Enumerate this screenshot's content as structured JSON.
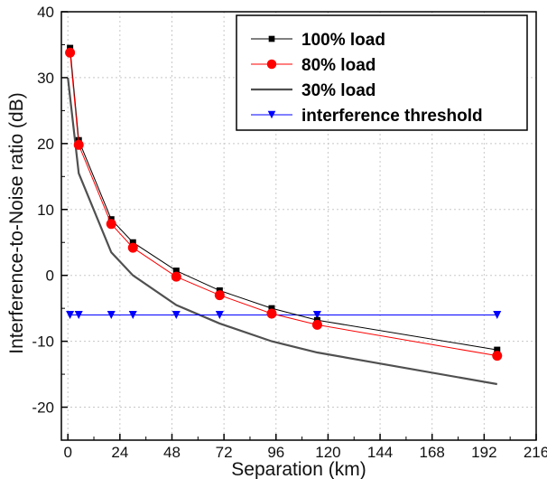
{
  "chart_data": {
    "type": "line",
    "title": "",
    "xlabel": "Separation (km)",
    "ylabel": "Interference-to-Noise ratio (dB)",
    "xlim": [
      -3,
      216
    ],
    "ylim": [
      -25,
      40
    ],
    "xticks": [
      0,
      24,
      48,
      72,
      96,
      120,
      144,
      168,
      192,
      216
    ],
    "yticks": [
      -20,
      -10,
      0,
      10,
      20,
      30,
      40
    ],
    "grid": true,
    "legend_position": "top-right",
    "series": [
      {
        "name": "100% load",
        "color": "#000000",
        "marker": "square",
        "x": [
          1,
          5,
          20,
          30,
          50,
          70,
          94,
          115,
          198
        ],
        "y": [
          34.5,
          20.5,
          8.5,
          5.0,
          0.7,
          -2.3,
          -5.0,
          -6.8,
          -11.3
        ]
      },
      {
        "name": "80% load",
        "color": "#ff0000",
        "marker": "circle",
        "x": [
          1,
          5,
          20,
          30,
          50,
          70,
          94,
          115,
          198
        ],
        "y": [
          33.8,
          19.8,
          7.8,
          4.2,
          -0.2,
          -3.0,
          -5.8,
          -7.5,
          -12.2
        ]
      },
      {
        "name": "30% load",
        "color": "#505050",
        "marker": "none",
        "x": [
          0,
          5,
          20,
          30,
          50,
          70,
          94,
          115,
          198
        ],
        "y": [
          30.0,
          15.5,
          3.5,
          0.0,
          -4.5,
          -7.3,
          -10.0,
          -11.7,
          -16.5
        ]
      },
      {
        "name": "interference threshold",
        "color": "#0000ff",
        "marker": "triangle-down",
        "x": [
          1,
          5,
          20,
          30,
          50,
          70,
          94,
          115,
          198
        ],
        "y": [
          -6,
          -6,
          -6,
          -6,
          -6,
          -6,
          -6,
          -6,
          -6
        ]
      }
    ]
  }
}
